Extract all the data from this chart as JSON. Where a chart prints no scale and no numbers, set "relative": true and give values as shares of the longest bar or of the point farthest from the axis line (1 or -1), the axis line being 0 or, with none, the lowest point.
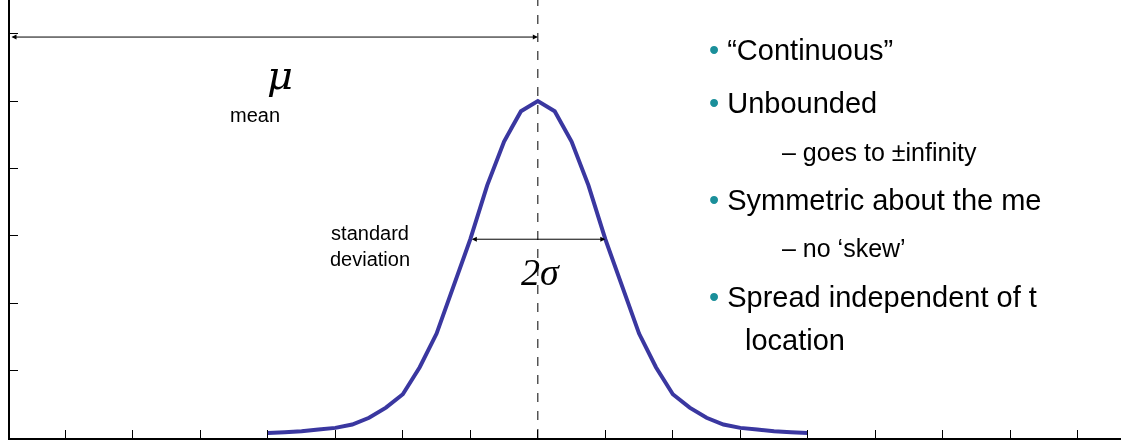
{
  "chart_data": {
    "type": "line",
    "relative": true,
    "categories": [
      null,
      null,
      null,
      null,
      null,
      null,
      null,
      null,
      null,
      null,
      null,
      null,
      null,
      null,
      null,
      null,
      null,
      null,
      null,
      null,
      null,
      null,
      null,
      null,
      null,
      null,
      null,
      null,
      null,
      null,
      null,
      null,
      null
    ],
    "series": [
      {
        "color": "#3a37a0",
        "values": [
          0.015,
          0.017,
          0.02,
          0.025,
          0.03,
          0.04,
          0.06,
          0.09,
          0.13,
          0.21,
          0.31,
          0.45,
          0.59,
          0.75,
          0.88,
          0.97,
          1,
          0.97,
          0.88,
          0.75,
          0.59,
          0.45,
          0.31,
          0.21,
          0.13,
          0.09,
          0.06,
          0.04,
          0.03,
          0.025,
          0.02,
          0.017,
          0.015
        ]
      }
    ],
    "ref_lines": [
      {
        "axis": "x",
        "label": "μ",
        "color": "#000000",
        "line_style": "dashed"
      }
    ],
    "annotations": [
      "mean",
      "standard\ndeviation",
      "2σ",
      "• “Continuous”",
      "• Unbounded",
      "– goes to ±infinity",
      "• Symmetric about the me",
      "– no ‘skew’",
      "• Spread independent of t",
      "location"
    ],
    "marker": "none",
    "line_style": "solid"
  }
}
